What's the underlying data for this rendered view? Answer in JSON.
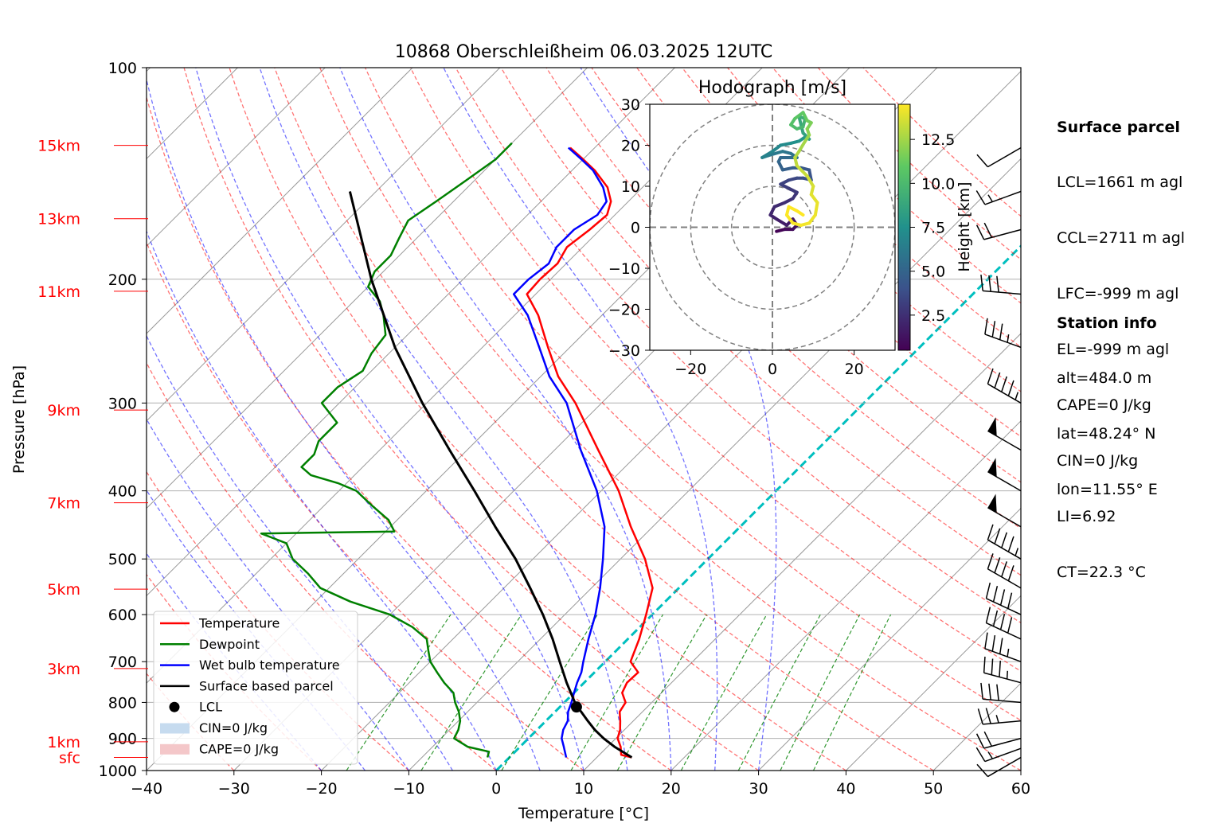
{
  "chart_data": {
    "type": "skew-t log-p diagram",
    "title": "10868 Oberschleißheim 06.03.2025 12UTC",
    "xlabel": "Temperature [°C]",
    "ylabel": "Pressure [hPa]",
    "xlim": [
      -40,
      60
    ],
    "ylim": [
      1000,
      100
    ],
    "y_scale": "log",
    "x_ticks": [
      "−40",
      "−30",
      "−20",
      "−10",
      "0",
      "10",
      "20",
      "30",
      "40",
      "50",
      "60"
    ],
    "y_ticks": [
      "100",
      "200",
      "300",
      "400",
      "500",
      "600",
      "700",
      "800",
      "900",
      "1000"
    ],
    "height_labels": [
      {
        "label": "15km",
        "p": 129
      },
      {
        "label": "13km",
        "p": 164
      },
      {
        "label": "11km",
        "p": 208
      },
      {
        "label": "9km",
        "p": 307
      },
      {
        "label": "7km",
        "p": 416
      },
      {
        "label": "5km",
        "p": 552
      },
      {
        "label": "3km",
        "p": 716
      },
      {
        "label": "1km",
        "p": 910
      },
      {
        "label": "sfc",
        "p": 958
      }
    ],
    "series": [
      {
        "name": "Temperature",
        "color": "#ff0000",
        "points": [
          [
            958,
            14.0
          ],
          [
            950,
            12.5
          ],
          [
            925,
            11.5
          ],
          [
            900,
            10.2
          ],
          [
            875,
            9.5
          ],
          [
            850,
            8.5
          ],
          [
            825,
            7.4
          ],
          [
            800,
            7.0
          ],
          [
            775,
            5.5
          ],
          [
            750,
            4.9
          ],
          [
            725,
            5.0
          ],
          [
            700,
            2.9
          ],
          [
            650,
            1.3
          ],
          [
            600,
            -0.7
          ],
          [
            550,
            -3.0
          ],
          [
            500,
            -7.2
          ],
          [
            450,
            -12.5
          ],
          [
            400,
            -18.0
          ],
          [
            350,
            -25.0
          ],
          [
            300,
            -33.0
          ],
          [
            275,
            -38.0
          ],
          [
            250,
            -42.5
          ],
          [
            225,
            -47.3
          ],
          [
            210,
            -51.0
          ],
          [
            200,
            -51.2
          ],
          [
            190,
            -51.0
          ],
          [
            180,
            -51.8
          ],
          [
            170,
            -51.2
          ],
          [
            162,
            -50.9
          ],
          [
            155,
            -52.0
          ],
          [
            148,
            -54.0
          ],
          [
            140,
            -57.4
          ],
          [
            135,
            -60.0
          ],
          [
            130,
            -62.8
          ]
        ]
      },
      {
        "name": "Dewpoint",
        "color": "#008000",
        "points": [
          [
            958,
            -2.5
          ],
          [
            940,
            -3.0
          ],
          [
            925,
            -6.0
          ],
          [
            900,
            -8.5
          ],
          [
            875,
            -9.0
          ],
          [
            850,
            -9.8
          ],
          [
            825,
            -11.0
          ],
          [
            800,
            -12.5
          ],
          [
            775,
            -13.8
          ],
          [
            750,
            -16.0
          ],
          [
            725,
            -18.0
          ],
          [
            700,
            -20.0
          ],
          [
            675,
            -21.5
          ],
          [
            650,
            -23.0
          ],
          [
            625,
            -26.0
          ],
          [
            600,
            -30.0
          ],
          [
            575,
            -36.0
          ],
          [
            550,
            -41.0
          ],
          [
            525,
            -44.0
          ],
          [
            500,
            -47.5
          ],
          [
            475,
            -50.0
          ],
          [
            460,
            -54.0
          ],
          [
            457,
            -39.0
          ],
          [
            440,
            -41.0
          ],
          [
            420,
            -44.5
          ],
          [
            400,
            -48.0
          ],
          [
            390,
            -51.0
          ],
          [
            380,
            -55.0
          ],
          [
            370,
            -57.0
          ],
          [
            355,
            -57.0
          ],
          [
            340,
            -58.0
          ],
          [
            320,
            -58.0
          ],
          [
            300,
            -62.0
          ],
          [
            285,
            -62.0
          ],
          [
            270,
            -61.0
          ],
          [
            255,
            -62.0
          ],
          [
            240,
            -62.5
          ],
          [
            225,
            -65.0
          ],
          [
            215,
            -67.0
          ],
          [
            205,
            -70.0
          ],
          [
            195,
            -71.0
          ],
          [
            185,
            -71.0
          ],
          [
            175,
            -72.0
          ],
          [
            165,
            -73.0
          ],
          [
            155,
            -72.0
          ],
          [
            145,
            -71.0
          ],
          [
            135,
            -70.0
          ],
          [
            128,
            -70.0
          ]
        ]
      },
      {
        "name": "Wet bulb temperature",
        "color": "#0000ff",
        "points": [
          [
            958,
            6.5
          ],
          [
            925,
            5.0
          ],
          [
            900,
            3.8
          ],
          [
            875,
            3.0
          ],
          [
            850,
            2.5
          ],
          [
            825,
            1.5
          ],
          [
            800,
            0.8
          ],
          [
            775,
            0.0
          ],
          [
            750,
            -0.8
          ],
          [
            725,
            -1.5
          ],
          [
            700,
            -2.5
          ],
          [
            650,
            -4.5
          ],
          [
            600,
            -6.5
          ],
          [
            550,
            -9.0
          ],
          [
            500,
            -12.0
          ],
          [
            450,
            -15.5
          ],
          [
            400,
            -20.5
          ],
          [
            350,
            -27.0
          ],
          [
            300,
            -34.0
          ],
          [
            275,
            -39.0
          ],
          [
            250,
            -43.5
          ],
          [
            225,
            -48.5
          ],
          [
            210,
            -52.5
          ],
          [
            200,
            -52.5
          ],
          [
            190,
            -52.0
          ],
          [
            180,
            -53.0
          ],
          [
            170,
            -53.0
          ],
          [
            162,
            -52.0
          ],
          [
            155,
            -52.5
          ],
          [
            148,
            -54.5
          ],
          [
            140,
            -57.6
          ],
          [
            135,
            -60.2
          ],
          [
            130,
            -63.0
          ]
        ]
      },
      {
        "name": "Surface based parcel",
        "color": "#000000",
        "points": [
          [
            958,
            14.0
          ],
          [
            925,
            10.8
          ],
          [
            900,
            8.6
          ],
          [
            875,
            6.6
          ],
          [
            850,
            4.8
          ],
          [
            825,
            3.0
          ],
          [
            810,
            1.8
          ],
          [
            800,
            1.2
          ],
          [
            750,
            -2.0
          ],
          [
            700,
            -5.2
          ],
          [
            650,
            -8.6
          ],
          [
            600,
            -12.5
          ],
          [
            550,
            -17.0
          ],
          [
            500,
            -22.0
          ],
          [
            450,
            -28.0
          ],
          [
            400,
            -34.5
          ],
          [
            350,
            -42.0
          ],
          [
            300,
            -50.5
          ],
          [
            250,
            -60.0
          ],
          [
            200,
            -70.5
          ],
          [
            150,
            -83.0
          ]
        ]
      }
    ],
    "lcl_point": {
      "name": "LCL",
      "p": 812,
      "t": 1.9
    },
    "legend": [
      "Temperature",
      "Dewpoint",
      "Wet bulb temperature",
      "Surface based parcel",
      "LCL",
      "CIN=0 J/kg",
      "CAPE=0 J/kg"
    ],
    "legend_position": "lower-left",
    "grid": true,
    "wind_barbs": [
      {
        "p": 958,
        "dir": 240,
        "kt": 10
      },
      {
        "p": 930,
        "dir": 250,
        "kt": 15
      },
      {
        "p": 900,
        "dir": 255,
        "kt": 20
      },
      {
        "p": 850,
        "dir": 265,
        "kt": 25
      },
      {
        "p": 800,
        "dir": 275,
        "kt": 30
      },
      {
        "p": 750,
        "dir": 285,
        "kt": 35
      },
      {
        "p": 700,
        "dir": 290,
        "kt": 35
      },
      {
        "p": 650,
        "dir": 295,
        "kt": 40
      },
      {
        "p": 600,
        "dir": 295,
        "kt": 40
      },
      {
        "p": 550,
        "dir": 300,
        "kt": 40
      },
      {
        "p": 500,
        "dir": 300,
        "kt": 45
      },
      {
        "p": 450,
        "dir": 300,
        "kt": 50
      },
      {
        "p": 400,
        "dir": 300,
        "kt": 50
      },
      {
        "p": 350,
        "dir": 300,
        "kt": 50
      },
      {
        "p": 300,
        "dir": 300,
        "kt": 45
      },
      {
        "p": 250,
        "dir": 290,
        "kt": 35
      },
      {
        "p": 210,
        "dir": 275,
        "kt": 30
      },
      {
        "p": 170,
        "dir": 255,
        "kt": 20
      },
      {
        "p": 150,
        "dir": 250,
        "kt": 15
      },
      {
        "p": 130,
        "dir": 240,
        "kt": 10
      }
    ],
    "inset": {
      "title": "Hodograph [m/s]",
      "xlim": [
        -30,
        30
      ],
      "ylim": [
        -30,
        30
      ],
      "x_ticks": [
        "−20",
        "0",
        "20"
      ],
      "y_ticks": [
        "30",
        "20",
        "10",
        "0",
        "−10",
        "−20",
        "−30"
      ],
      "rings": [
        10,
        20,
        30
      ],
      "colorbar_label": "Height [km]",
      "colorbar_ticks": [
        "2.5",
        "5.0",
        "7.5",
        "10.0",
        "12.5"
      ],
      "colorbar_range": [
        0.5,
        14.5
      ],
      "trace": [
        [
          1.0,
          -1.0,
          0.5
        ],
        [
          3.0,
          -0.5,
          0.8
        ],
        [
          5.0,
          -0.5,
          1.0
        ],
        [
          6.0,
          0.5,
          1.2
        ],
        [
          5.0,
          2.0,
          1.4
        ],
        [
          3.5,
          0.5,
          1.6
        ],
        [
          1.0,
          2.0,
          1.8
        ],
        [
          -0.5,
          3.0,
          2.0
        ],
        [
          0.5,
          5.0,
          2.2
        ],
        [
          3.0,
          6.0,
          2.4
        ],
        [
          5.0,
          7.0,
          2.6
        ],
        [
          6.0,
          8.5,
          2.8
        ],
        [
          4.0,
          9.5,
          3.0
        ],
        [
          2.0,
          10.5,
          3.2
        ],
        [
          4.0,
          11.5,
          3.4
        ],
        [
          6.0,
          12.0,
          3.6
        ],
        [
          7.5,
          12.0,
          3.8
        ],
        [
          9.5,
          11.5,
          4.0
        ],
        [
          9.0,
          14.0,
          4.2
        ],
        [
          7.0,
          14.5,
          4.4
        ],
        [
          5.0,
          14.5,
          4.6
        ],
        [
          2.5,
          14.0,
          4.8
        ],
        [
          1.5,
          16.0,
          5.0
        ],
        [
          2.0,
          17.0,
          5.2
        ],
        [
          4.5,
          17.0,
          5.4
        ],
        [
          6.0,
          17.0,
          5.6
        ],
        [
          4.5,
          18.0,
          5.8
        ],
        [
          2.5,
          18.5,
          6.0
        ],
        [
          -1.0,
          17.5,
          6.2
        ],
        [
          -2.5,
          17.0,
          6.5
        ],
        [
          0.0,
          18.5,
          6.8
        ],
        [
          2.0,
          20.0,
          7.0
        ],
        [
          4.5,
          20.5,
          7.3
        ],
        [
          6.5,
          21.0,
          7.6
        ],
        [
          8.0,
          22.0,
          7.9
        ],
        [
          9.0,
          21.5,
          8.2
        ],
        [
          7.5,
          23.0,
          8.5
        ],
        [
          7.0,
          25.0,
          8.8
        ],
        [
          6.5,
          27.0,
          9.1
        ],
        [
          8.0,
          26.5,
          9.4
        ],
        [
          7.5,
          24.5,
          9.7
        ],
        [
          6.0,
          24.0,
          10.0
        ],
        [
          4.5,
          25.0,
          10.3
        ],
        [
          5.5,
          26.5,
          10.6
        ],
        [
          7.5,
          28.0,
          10.9
        ],
        [
          8.5,
          26.0,
          11.2
        ],
        [
          9.5,
          25.5,
          11.5
        ],
        [
          8.5,
          24.0,
          11.8
        ],
        [
          9.0,
          22.5,
          12.1
        ],
        [
          8.0,
          21.0,
          12.4
        ],
        [
          6.5,
          18.5,
          12.7
        ],
        [
          5.5,
          17.0,
          13.0
        ],
        [
          6.0,
          15.0,
          13.2
        ],
        [
          8.5,
          12.5,
          13.4
        ],
        [
          10.0,
          10.0,
          13.6
        ],
        [
          9.5,
          8.0,
          13.8
        ],
        [
          11.0,
          6.0,
          14.0
        ],
        [
          10.5,
          3.0,
          14.1
        ],
        [
          9.0,
          1.0,
          14.2
        ],
        [
          7.0,
          0.5,
          14.3
        ],
        [
          5.0,
          1.0,
          14.4
        ],
        [
          3.5,
          3.0,
          14.45
        ],
        [
          4.0,
          5.0,
          14.5
        ],
        [
          6.0,
          4.0,
          14.5
        ],
        [
          7.5,
          3.0,
          14.5
        ]
      ]
    }
  },
  "surface_parcel": {
    "heading": "Surface parcel",
    "lines": [
      "LCL=1661 m agl",
      "CCL=2711 m agl",
      "LFC=-999 m agl",
      "EL=-999 m agl",
      "CAPE=0 J/kg",
      "CIN=0 J/kg",
      "LI=6.92",
      "CT=22.3 °C"
    ]
  },
  "station_info": {
    "heading": "Station info",
    "lines": [
      "alt=484.0 m",
      "lat=48.24° N",
      "lon=11.55° E"
    ]
  },
  "colors": {
    "temperature": "#ff0000",
    "dewpoint": "#008000",
    "wetbulb": "#0000ff",
    "parcel": "#000000",
    "dry_adiabat": "#ff0000",
    "moist_adiabat": "#0000ff",
    "mixing_ratio": "#008000",
    "isotherm": "#999999",
    "zero_isotherm": "#00bfbf",
    "height_label": "#ff0000"
  }
}
